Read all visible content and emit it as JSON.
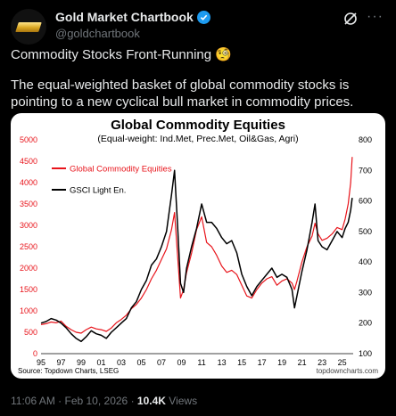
{
  "post": {
    "display_name": "Gold Market Chartbook",
    "handle": "@goldchartbook",
    "text_line1": "Commodity Stocks Front-Running 🧐",
    "text_line2": "The equal-weighted basket of global commodity stocks is pointing to a new cyclical bull market in commodity prices.",
    "time": "11:06 AM",
    "date": "Feb 10, 2026",
    "views_count": "10.4K",
    "views_label": "Views",
    "icons": {
      "verified": "verified-badge-icon",
      "grok": "grok-icon",
      "more": "more-icon"
    }
  },
  "chart_data": {
    "type": "line",
    "title": "Global Commodity Equities",
    "subtitle": "(Equal-weight: Ind.Met, Prec.Met, Oil&Gas, Agri)",
    "source": "Source: Topdown Charts, LSEG",
    "watermark": "topdowncharts.com",
    "x_ticks": [
      "95",
      "97",
      "99",
      "01",
      "03",
      "05",
      "07",
      "09",
      "11",
      "13",
      "15",
      "17",
      "19",
      "21",
      "23",
      "25"
    ],
    "x_range": [
      1995,
      2026.1
    ],
    "y_left_ticks": [
      "0",
      "500",
      "1000",
      "1500",
      "2000",
      "2500",
      "3000",
      "3500",
      "4000",
      "4500",
      "5000"
    ],
    "y_left_range": [
      0,
      5000
    ],
    "y_right_ticks": [
      "100",
      "200",
      "300",
      "400",
      "500",
      "600",
      "700",
      "800"
    ],
    "y_right_range": [
      100,
      800
    ],
    "legend_position": "top-left",
    "series": [
      {
        "name": "Global Commodity Equities",
        "axis": "left",
        "color": "#e8141b",
        "x": [
          1995,
          1995.5,
          1996,
          1996.5,
          1997,
          1997.5,
          1998,
          1998.5,
          1999,
          1999.5,
          2000,
          2000.5,
          2001,
          2001.5,
          2002,
          2002.5,
          2003,
          2003.5,
          2004,
          2004.5,
          2005,
          2005.5,
          2006,
          2006.5,
          2007,
          2007.5,
          2008,
          2008.3,
          2008.6,
          2008.9,
          2009.2,
          2009.5,
          2010,
          2010.5,
          2011,
          2011.5,
          2012,
          2012.5,
          2013,
          2013.5,
          2014,
          2014.5,
          2015,
          2015.5,
          2016,
          2016.5,
          2017,
          2017.5,
          2018,
          2018.5,
          2019,
          2019.5,
          2020,
          2020.25,
          2020.5,
          2021,
          2021.5,
          2022,
          2022.3,
          2022.6,
          2023,
          2023.5,
          2024,
          2024.5,
          2025,
          2025.3,
          2025.6,
          2025.85,
          2026.0
        ],
        "y": [
          680,
          700,
          740,
          720,
          760,
          640,
          560,
          500,
          480,
          560,
          620,
          580,
          560,
          520,
          600,
          720,
          800,
          900,
          1050,
          1150,
          1300,
          1500,
          1750,
          1950,
          2200,
          2450,
          2900,
          3300,
          2300,
          1300,
          1500,
          1900,
          2350,
          2900,
          3200,
          2600,
          2500,
          2300,
          2050,
          1900,
          1950,
          1850,
          1600,
          1350,
          1300,
          1500,
          1650,
          1750,
          1800,
          1600,
          1700,
          1750,
          1650,
          1500,
          1700,
          2150,
          2500,
          2750,
          3050,
          2800,
          2650,
          2700,
          2800,
          2950,
          2900,
          3150,
          3500,
          4000,
          4600
        ]
      },
      {
        "name": "GSCI Light En.",
        "axis": "right",
        "color": "#000000",
        "x": [
          1995,
          1995.5,
          1996,
          1996.5,
          1997,
          1997.5,
          1998,
          1998.5,
          1999,
          1999.5,
          2000,
          2000.5,
          2001,
          2001.5,
          2002,
          2002.5,
          2003,
          2003.5,
          2004,
          2004.5,
          2005,
          2005.5,
          2006,
          2006.5,
          2007,
          2007.5,
          2008,
          2008.3,
          2008.6,
          2008.9,
          2009.2,
          2009.5,
          2010,
          2010.5,
          2011,
          2011.5,
          2012,
          2012.5,
          2013,
          2013.5,
          2014,
          2014.5,
          2015,
          2015.5,
          2016,
          2016.5,
          2017,
          2017.5,
          2018,
          2018.5,
          2019,
          2019.5,
          2020,
          2020.25,
          2020.5,
          2021,
          2021.5,
          2022,
          2022.3,
          2022.6,
          2023,
          2023.5,
          2024,
          2024.5,
          2025,
          2025.3,
          2025.6,
          2025.85,
          2026.0
        ],
        "y": [
          200,
          205,
          215,
          210,
          200,
          185,
          165,
          150,
          140,
          155,
          175,
          165,
          160,
          150,
          170,
          185,
          200,
          215,
          250,
          270,
          310,
          340,
          390,
          410,
          450,
          500,
          620,
          700,
          520,
          330,
          300,
          380,
          450,
          510,
          590,
          530,
          530,
          510,
          480,
          460,
          470,
          430,
          360,
          320,
          290,
          320,
          340,
          360,
          380,
          350,
          360,
          350,
          310,
          250,
          290,
          370,
          440,
          530,
          590,
          470,
          450,
          440,
          470,
          500,
          480,
          510,
          530,
          570,
          610
        ]
      }
    ]
  }
}
